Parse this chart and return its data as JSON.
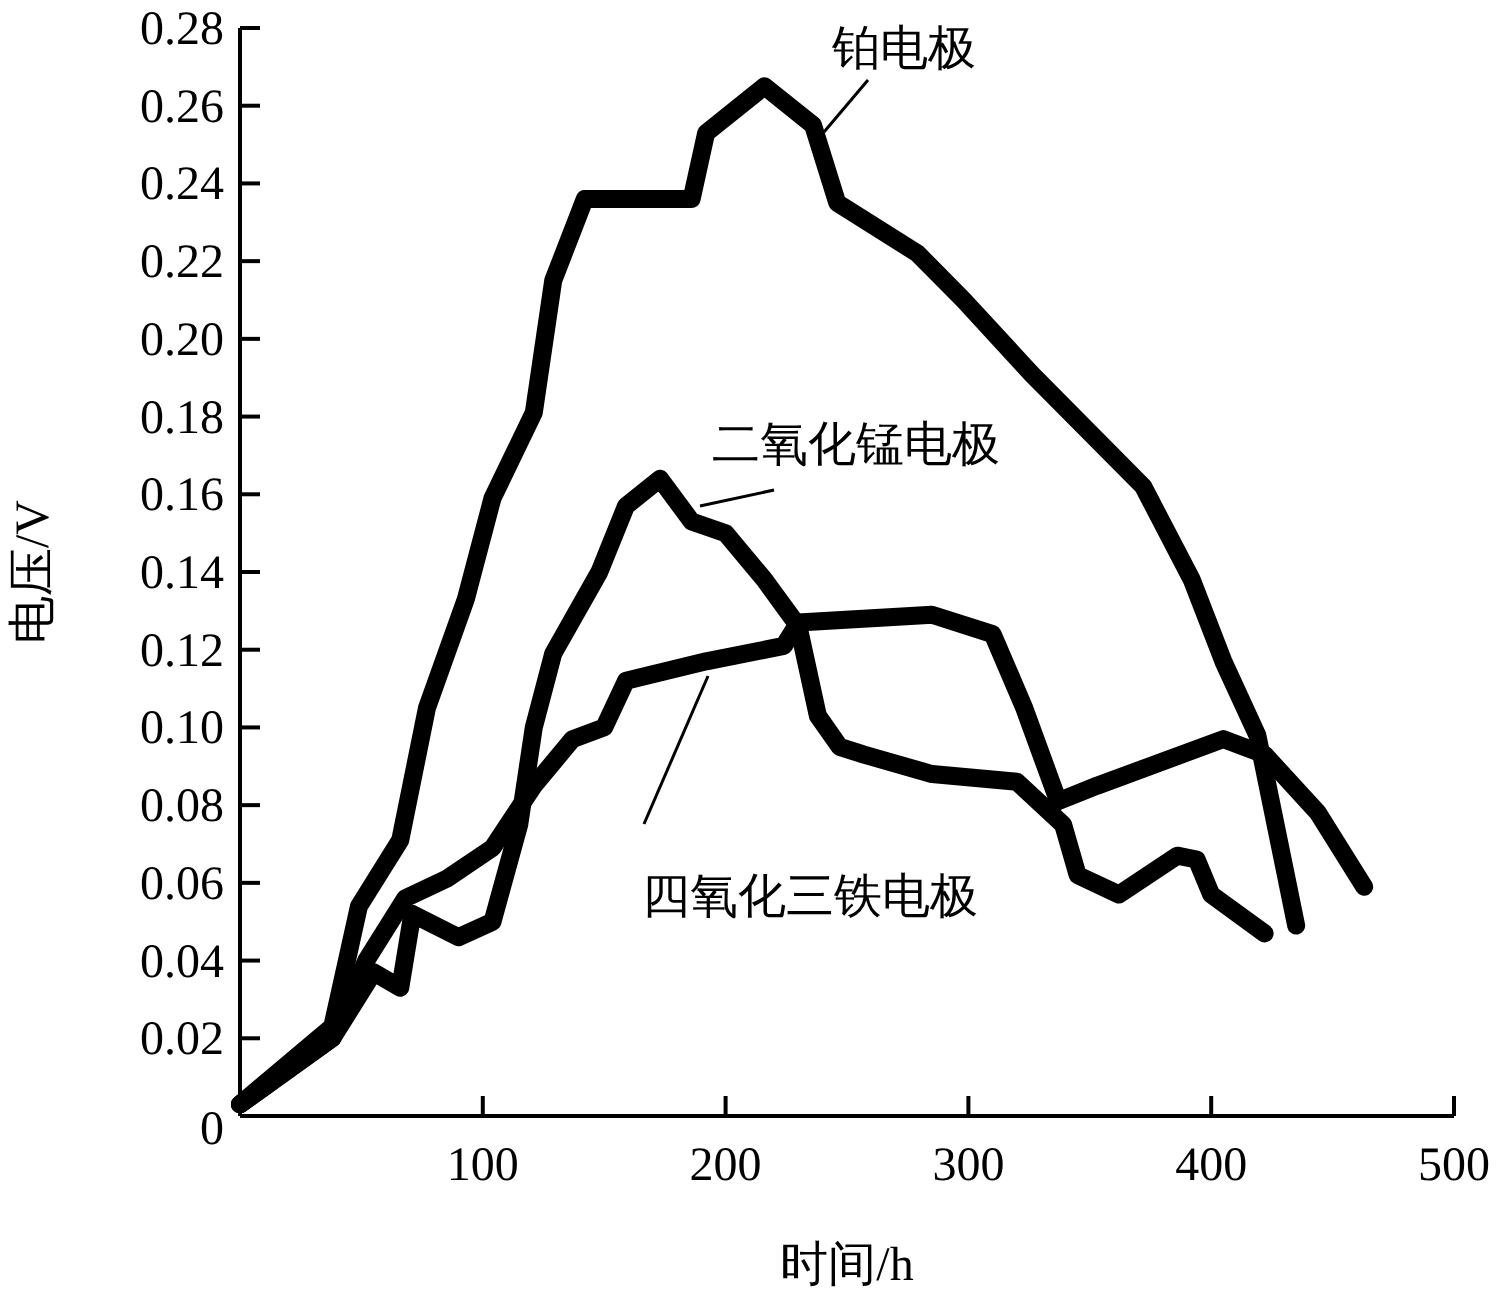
{
  "chart_data": {
    "type": "line",
    "xlabel": "时间/h",
    "ylabel": "电压/V",
    "xlim": [
      0,
      500
    ],
    "ylim": [
      0,
      0.28
    ],
    "xticks": [
      100,
      200,
      300,
      400,
      500
    ],
    "yticks": [
      {
        "value": 0,
        "label": "0"
      },
      {
        "value": 0.02,
        "label": "0.02"
      },
      {
        "value": 0.04,
        "label": "0.04"
      },
      {
        "value": 0.06,
        "label": "0.06"
      },
      {
        "value": 0.08,
        "label": "0.08"
      },
      {
        "value": 0.1,
        "label": "0.10"
      },
      {
        "value": 0.12,
        "label": "0.12"
      },
      {
        "value": 0.14,
        "label": "0.14"
      },
      {
        "value": 0.16,
        "label": "0.16"
      },
      {
        "value": 0.18,
        "label": "0.18"
      },
      {
        "value": 0.2,
        "label": "0.20"
      },
      {
        "value": 0.22,
        "label": "0.22"
      },
      {
        "value": 0.24,
        "label": "0.24"
      },
      {
        "value": 0.26,
        "label": "0.26"
      },
      {
        "value": 0.28,
        "label": "0.28"
      }
    ],
    "grid": false,
    "legend": false,
    "marker": "none",
    "line_style": "solid",
    "series": [
      {
        "name": "铂电极",
        "color": "#000000",
        "x": [
          0,
          38,
          49,
          66,
          77,
          93,
          104,
          121,
          129,
          142,
          186,
          192,
          216,
          236,
          246,
          279,
          298,
          326,
          372,
          392,
          405,
          419,
          435
        ],
        "values": [
          0.003,
          0.023,
          0.054,
          0.071,
          0.105,
          0.133,
          0.159,
          0.181,
          0.215,
          0.236,
          0.236,
          0.253,
          0.265,
          0.255,
          0.235,
          0.222,
          0.21,
          0.191,
          0.162,
          0.138,
          0.117,
          0.098,
          0.049
        ]
      },
      {
        "name": "二氧化锰电极",
        "color": "#000000",
        "x": [
          0,
          38,
          55,
          66,
          71,
          90,
          104,
          115,
          121,
          129,
          148,
          159,
          173,
          186,
          200,
          216,
          230,
          238,
          247,
          257,
          285,
          320,
          339,
          345,
          362,
          386,
          394,
          400,
          422
        ],
        "values": [
          0.003,
          0.02,
          0.037,
          0.033,
          0.052,
          0.046,
          0.05,
          0.075,
          0.1,
          0.119,
          0.14,
          0.157,
          0.164,
          0.153,
          0.15,
          0.138,
          0.126,
          0.103,
          0.095,
          0.093,
          0.088,
          0.086,
          0.075,
          0.062,
          0.057,
          0.067,
          0.066,
          0.057,
          0.047
        ]
      },
      {
        "name": "四氧化三铁电极",
        "color": "#000000",
        "x": [
          0,
          38,
          52,
          68,
          85,
          104,
          121,
          137,
          150,
          159,
          192,
          224,
          230,
          285,
          310,
          323,
          337,
          353,
          405,
          422,
          444,
          463
        ],
        "values": [
          0.003,
          0.02,
          0.04,
          0.056,
          0.061,
          0.069,
          0.085,
          0.097,
          0.1,
          0.112,
          0.117,
          0.121,
          0.127,
          0.129,
          0.124,
          0.105,
          0.081,
          0.085,
          0.097,
          0.093,
          0.078,
          0.059
        ]
      }
    ]
  }
}
